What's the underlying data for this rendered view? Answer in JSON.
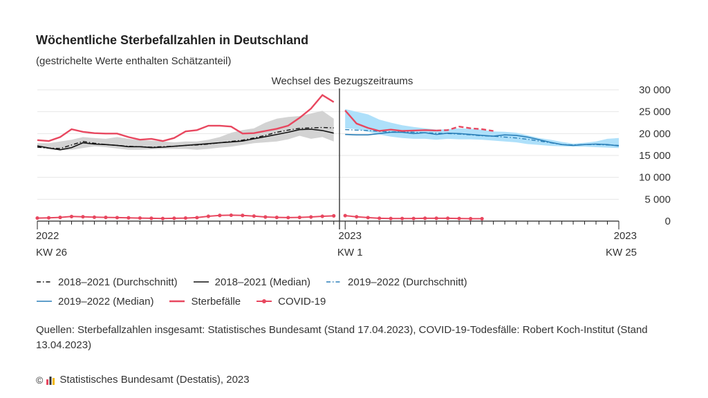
{
  "title": "Wöchentliche Sterbefallzahlen in Deutschland",
  "subtitle": "(gestrichelte Werte enthalten Schätzanteil)",
  "annotation": "Wechsel des Bezugszeitraums",
  "legend": {
    "avg_2018_2021": "2018–2021 (Durchschnitt)",
    "median_2018_2021": "2018–2021 (Median)",
    "avg_2019_2022": "2019–2022 (Durchschnitt)",
    "median_2019_2022": "2019–2022 (Median)",
    "deaths": "Sterbefälle",
    "covid": "COVID-19"
  },
  "source": "Quellen: Sterbefallzahlen insgesamt: Statistisches Bundesamt (Stand 17.04.2023), COVID-19-Todesfälle: Robert Koch-Institut (Stand 13.04.2023)",
  "credit": "Statistisches Bundesamt (Destatis), 2023",
  "credit_symbol": "©",
  "colors": {
    "deaths": "#e8475f",
    "median_2019_2022": "#2a7fb8",
    "band_2019_2022": "#aee0fa",
    "band_2018_2021": "#d3d3d3",
    "median_2018_2021": "#111111",
    "grid": "#e6e6e6",
    "divider": "#333333"
  },
  "chart_data": {
    "type": "line",
    "x_labels": [
      {
        "week": 0,
        "year": "2022",
        "kw": "KW 26"
      },
      {
        "week": 27,
        "year": "2023",
        "kw": "KW 1"
      },
      {
        "week": 51,
        "year": "2023",
        "kw": "KW 25"
      }
    ],
    "y_ticks": [
      0,
      5000,
      10000,
      15000,
      20000,
      25000,
      30000
    ],
    "y_tick_labels": [
      "0",
      "5 000",
      "10 000",
      "15 000",
      "20 000",
      "25 000",
      "30 000"
    ],
    "ylim": [
      0,
      30000
    ],
    "grid": true,
    "divider_week": 26.5,
    "period1": {
      "weeks": [
        0,
        1,
        2,
        3,
        4,
        5,
        6,
        7,
        8,
        9,
        10,
        11,
        12,
        13,
        14,
        15,
        16,
        17,
        18,
        19,
        20,
        21,
        22,
        23,
        24,
        25,
        26
      ],
      "band_min": [
        16800,
        16400,
        16200,
        16300,
        16700,
        17100,
        16900,
        16600,
        16300,
        16300,
        16400,
        16500,
        16500,
        16500,
        16300,
        16500,
        16800,
        17000,
        17400,
        17800,
        18000,
        18200,
        18700,
        19500,
        18800,
        19200,
        18200
      ],
      "band_max": [
        17800,
        17800,
        18200,
        18600,
        19200,
        19000,
        18800,
        19200,
        18800,
        18500,
        18400,
        18200,
        18000,
        18200,
        18200,
        18600,
        19200,
        20200,
        20800,
        21200,
        22500,
        23400,
        23800,
        24000,
        24600,
        25200,
        23400
      ],
      "avg": [
        16900,
        16700,
        16600,
        17400,
        18200,
        17800,
        17500,
        17300,
        17100,
        17000,
        16900,
        17000,
        17100,
        17300,
        17400,
        17600,
        17900,
        18200,
        18500,
        19000,
        19600,
        20300,
        20800,
        21200,
        21300,
        21400,
        21300
      ],
      "median": [
        17200,
        16700,
        16300,
        16800,
        17900,
        17600,
        17500,
        17300,
        17000,
        17000,
        16800,
        16900,
        17100,
        17300,
        17500,
        17700,
        17900,
        18100,
        18300,
        18800,
        19300,
        19800,
        20300,
        20900,
        21000,
        20700,
        20100
      ],
      "deaths": [
        18500,
        18300,
        19200,
        21000,
        20400,
        20100,
        20000,
        20000,
        19200,
        18600,
        18800,
        18300,
        19000,
        20500,
        20800,
        21800,
        21800,
        21600,
        20000,
        20100,
        20600,
        21100,
        21800,
        23600,
        25700,
        28800,
        27200
      ],
      "covid": [
        700,
        750,
        850,
        1050,
        1000,
        900,
        850,
        800,
        750,
        700,
        650,
        600,
        650,
        700,
        800,
        1100,
        1300,
        1350,
        1300,
        1150,
        950,
        850,
        800,
        850,
        950,
        1100,
        1200
      ]
    },
    "period2": {
      "weeks": [
        27,
        28,
        29,
        30,
        31,
        32,
        33,
        34,
        35,
        36,
        37,
        38,
        39,
        40,
        41,
        42,
        43,
        44,
        45,
        46,
        47,
        48,
        49,
        50,
        51
      ],
      "band_min": [
        21200,
        21000,
        20400,
        19800,
        19300,
        19000,
        18800,
        18800,
        18600,
        18800,
        18700,
        18700,
        18600,
        18400,
        18200,
        18000,
        17600,
        17400,
        17200,
        17100,
        17000,
        17000,
        16900,
        16800,
        16700
      ],
      "band_max": [
        25600,
        25000,
        24400,
        23200,
        22500,
        21900,
        21500,
        21200,
        20900,
        21000,
        21200,
        21100,
        20900,
        20500,
        20400,
        20200,
        19600,
        19000,
        18600,
        18100,
        17700,
        17900,
        18200,
        18800,
        19000
      ],
      "avg": [
        20900,
        20800,
        20700,
        20500,
        20400,
        20400,
        20300,
        20200,
        20100,
        20000,
        19900,
        19700,
        19500,
        19400,
        19200,
        19000,
        18700,
        18300,
        17900,
        17500,
        17400,
        17500,
        17500,
        17400,
        17300
      ],
      "median": [
        19800,
        19700,
        19700,
        20000,
        20300,
        20300,
        20000,
        20200,
        19800,
        20100,
        20000,
        19800,
        19600,
        19400,
        19700,
        19600,
        19200,
        18600,
        18000,
        17500,
        17300,
        17500,
        17600,
        17500,
        17200
      ],
      "deaths_solid_end": 35,
      "deaths": [
        25300,
        22300,
        21300,
        20600,
        20900,
        20600,
        20700,
        20800,
        20700,
        20800,
        21600,
        21200,
        21000,
        20600
      ],
      "covid": [
        1250,
        1000,
        800,
        650,
        600,
        600,
        600,
        650,
        650,
        650,
        600,
        550,
        550
      ]
    }
  }
}
